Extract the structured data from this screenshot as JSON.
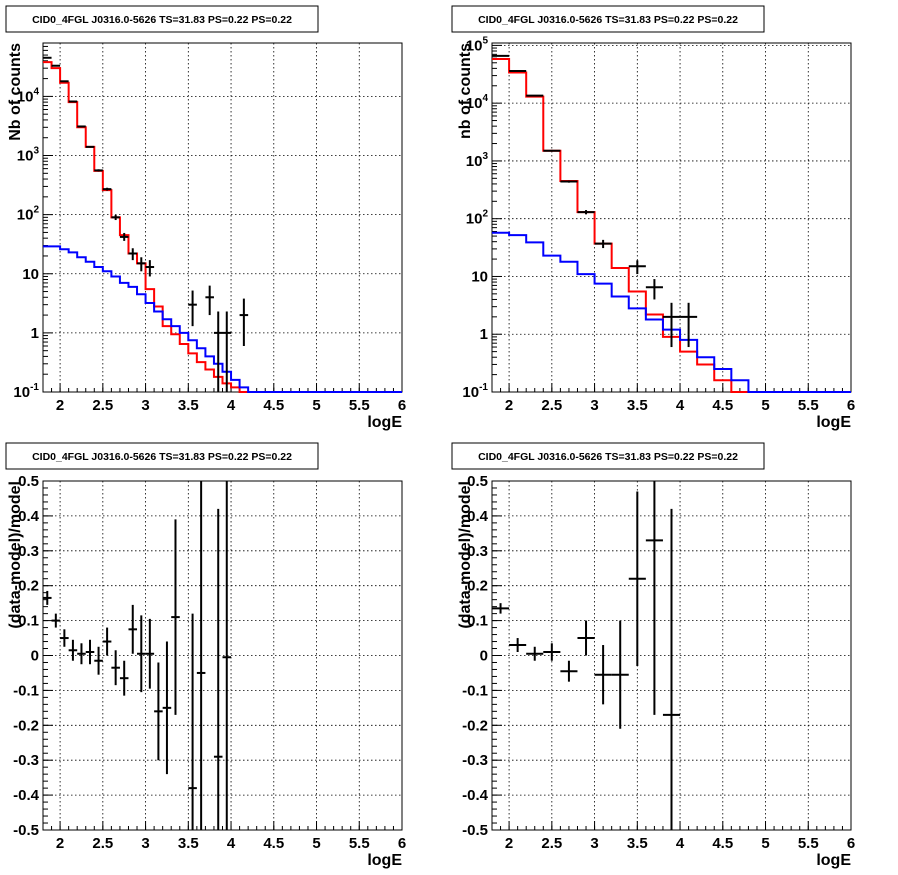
{
  "chart_data": [
    {
      "type": "histogram-log",
      "title": "CID0_4FGL J0316.0-5626 TS=31.83 PS=0.22 PS=0.22",
      "xlabel": "logE",
      "ylabel": "Nb of counts",
      "xlim": [
        1.8,
        6.0
      ],
      "ylim": [
        0.1,
        80000
      ],
      "log_y": true,
      "grid": true,
      "x_ticks": [
        "2",
        "2.5",
        "3",
        "3.5",
        "4",
        "4.5",
        "5",
        "5.5",
        "6"
      ],
      "y_ticks": [
        "10^-1",
        "1",
        "10",
        "10^2",
        "10^3",
        "10^4"
      ],
      "bin_width": 0.1,
      "bins_start": 1.8,
      "series": [
        {
          "color": "#ff0000",
          "values": [
            38000,
            30000,
            17000,
            8000,
            3000,
            1400,
            550,
            260,
            90,
            45,
            22,
            15,
            5.5,
            2.8,
            1.3,
            0.95,
            0.65,
            0.45,
            0.32,
            0.24,
            0.18,
            0.14,
            0.12,
            0.1,
            0.1,
            0.1,
            0.1,
            0.1,
            0.1,
            0.1,
            0.1,
            0.1,
            0.1,
            0.1,
            0.1,
            0.1,
            0.1,
            0.1,
            0.1,
            0.1,
            0.1,
            0.1
          ]
        },
        {
          "color": "#0000ff",
          "values": [
            29,
            29,
            26,
            23,
            19,
            16,
            13,
            11,
            9,
            7,
            6,
            4.5,
            3.2,
            2.3,
            1.7,
            1.3,
            1.0,
            0.75,
            0.55,
            0.4,
            0.3,
            0.22,
            0.16,
            0.12,
            0.1,
            0.1,
            0.1,
            0.1,
            0.1,
            0.1,
            0.1,
            0.1,
            0.1,
            0.1,
            0.1,
            0.1,
            0.1,
            0.1,
            0.1,
            0.1,
            0.1,
            0.1
          ]
        }
      ],
      "data_points": [
        {
          "x": 1.85,
          "y": 45000,
          "ylo": 44000,
          "yhi": 46000
        },
        {
          "x": 1.95,
          "y": 33000,
          "ylo": 32500,
          "yhi": 33500
        },
        {
          "x": 2.05,
          "y": 18000,
          "ylo": 17600,
          "yhi": 18400
        },
        {
          "x": 2.15,
          "y": 8200,
          "ylo": 8000,
          "yhi": 8400
        },
        {
          "x": 2.25,
          "y": 3100,
          "ylo": 3000,
          "yhi": 3200
        },
        {
          "x": 2.35,
          "y": 1400,
          "ylo": 1360,
          "yhi": 1440
        },
        {
          "x": 2.45,
          "y": 560,
          "ylo": 535,
          "yhi": 585
        },
        {
          "x": 2.55,
          "y": 270,
          "ylo": 255,
          "yhi": 285
        },
        {
          "x": 2.65,
          "y": 90,
          "ylo": 81,
          "yhi": 99
        },
        {
          "x": 2.75,
          "y": 42,
          "ylo": 36,
          "yhi": 49
        },
        {
          "x": 2.85,
          "y": 22,
          "ylo": 17,
          "yhi": 27
        },
        {
          "x": 2.95,
          "y": 15,
          "ylo": 11,
          "yhi": 19
        },
        {
          "x": 3.05,
          "y": 13,
          "ylo": 9,
          "yhi": 17
        },
        {
          "x": 3.55,
          "y": 3,
          "ylo": 1.3,
          "yhi": 5.2
        },
        {
          "x": 3.75,
          "y": 4,
          "ylo": 2,
          "yhi": 6.3
        },
        {
          "x": 3.85,
          "y": 1,
          "ylo": 0.1,
          "yhi": 2.3
        },
        {
          "x": 3.95,
          "y": 1,
          "ylo": 0.1,
          "yhi": 2.3
        },
        {
          "x": 4.15,
          "y": 2,
          "ylo": 0.6,
          "yhi": 3.8
        }
      ]
    },
    {
      "type": "histogram-log",
      "title": "CID0_4FGL J0316.0-5626 TS=31.83 PS=0.22 PS=0.22",
      "xlabel": "logE",
      "ylabel": "nb of counts",
      "xlim": [
        1.8,
        6.0
      ],
      "ylim": [
        0.1,
        110000
      ],
      "log_y": true,
      "grid": true,
      "x_ticks": [
        "2",
        "2.5",
        "3",
        "3.5",
        "4",
        "4.5",
        "5",
        "5.5",
        "6"
      ],
      "y_ticks": [
        "10^-1",
        "1",
        "10",
        "10^2",
        "10^3",
        "10^4",
        "10^5"
      ],
      "bin_width": 0.2,
      "bins_start": 1.8,
      "series": [
        {
          "color": "#ff0000",
          "values": [
            58000,
            34000,
            13000,
            1500,
            450,
            130,
            37,
            14,
            5.5,
            2.2,
            0.9,
            0.5,
            0.3,
            0.16,
            0.1,
            0.1,
            0.1,
            0.1,
            0.1,
            0.1,
            0.1
          ]
        },
        {
          "color": "#0000ff",
          "values": [
            57,
            52,
            39,
            23,
            18,
            11,
            7.5,
            4.5,
            2.8,
            1.8,
            1.2,
            0.8,
            0.4,
            0.25,
            0.16,
            0.1,
            0.1,
            0.1,
            0.1,
            0.1,
            0.1
          ]
        }
      ],
      "data_points": [
        {
          "x": 1.9,
          "y": 66000,
          "ylo": 65000,
          "yhi": 67000
        },
        {
          "x": 2.1,
          "y": 36000,
          "ylo": 35500,
          "yhi": 36500
        },
        {
          "x": 2.3,
          "y": 13500,
          "ylo": 13200,
          "yhi": 13800
        },
        {
          "x": 2.5,
          "y": 1500,
          "ylo": 1450,
          "yhi": 1550
        },
        {
          "x": 2.7,
          "y": 440,
          "ylo": 420,
          "yhi": 460
        },
        {
          "x": 2.9,
          "y": 130,
          "ylo": 119,
          "yhi": 141
        },
        {
          "x": 3.1,
          "y": 37,
          "ylo": 31,
          "yhi": 43
        },
        {
          "x": 3.5,
          "y": 15,
          "ylo": 11,
          "yhi": 19
        },
        {
          "x": 3.7,
          "y": 6.5,
          "ylo": 4,
          "yhi": 9
        },
        {
          "x": 3.9,
          "y": 2,
          "ylo": 0.6,
          "yhi": 3.5
        },
        {
          "x": 4.1,
          "y": 2,
          "ylo": 0.6,
          "yhi": 3.5
        }
      ]
    },
    {
      "type": "scatter-errorbar",
      "title": "CID0_4FGL J0316.0-5626 TS=31.83 PS=0.22 PS=0.22",
      "xlabel": "logE",
      "ylabel": "(data-model)/model",
      "xlim": [
        1.8,
        6.0
      ],
      "ylim": [
        -0.5,
        0.5
      ],
      "grid": true,
      "x_ticks": [
        "2",
        "2.5",
        "3",
        "3.5",
        "4",
        "4.5",
        "5",
        "5.5",
        "6"
      ],
      "y_ticks": [
        "-0.5",
        "-0.4",
        "-0.3",
        "-0.2",
        "-0.1",
        "0",
        "0.1",
        "0.2",
        "0.3",
        "0.4",
        "0.5"
      ],
      "x_half_width": 0.05,
      "points": [
        {
          "x": 1.85,
          "y": 0.165,
          "err": 0.02
        },
        {
          "x": 1.95,
          "y": 0.1,
          "err": 0.02
        },
        {
          "x": 2.05,
          "y": 0.05,
          "err": 0.025
        },
        {
          "x": 2.15,
          "y": 0.015,
          "err": 0.03
        },
        {
          "x": 2.25,
          "y": 0.005,
          "err": 0.03
        },
        {
          "x": 2.35,
          "y": 0.01,
          "err": 0.035
        },
        {
          "x": 2.45,
          "y": -0.015,
          "err": 0.04
        },
        {
          "x": 2.55,
          "y": 0.04,
          "err": 0.04
        },
        {
          "x": 2.65,
          "y": -0.035,
          "err": 0.05
        },
        {
          "x": 2.75,
          "y": -0.065,
          "err": 0.05
        },
        {
          "x": 2.85,
          "y": 0.075,
          "err": 0.07
        },
        {
          "x": 2.95,
          "y": 0.005,
          "err": 0.11
        },
        {
          "x": 3.05,
          "y": 0.005,
          "err": 0.1
        },
        {
          "x": 3.15,
          "y": -0.16,
          "err": 0.14
        },
        {
          "x": 3.25,
          "y": -0.15,
          "err": 0.19
        },
        {
          "x": 3.35,
          "y": 0.11,
          "err": 0.28
        },
        {
          "x": 3.55,
          "y": -0.38,
          "err": 0.5
        },
        {
          "x": 3.65,
          "y": -0.05,
          "err": 0.6
        },
        {
          "x": 3.85,
          "y": -0.29,
          "err": 0.71
        },
        {
          "x": 3.95,
          "y": -0.005,
          "err": 1.0
        }
      ]
    },
    {
      "type": "scatter-errorbar",
      "title": "CID0_4FGL J0316.0-5626 TS=31.83 PS=0.22 PS=0.22",
      "xlabel": "logE",
      "ylabel": "(data-model)/model",
      "xlim": [
        1.8,
        6.0
      ],
      "ylim": [
        -0.5,
        0.5
      ],
      "grid": true,
      "x_ticks": [
        "2",
        "2.5",
        "3",
        "3.5",
        "4",
        "4.5",
        "5",
        "5.5",
        "6"
      ],
      "y_ticks": [
        "-0.5",
        "-0.4",
        "-0.3",
        "-0.2",
        "-0.1",
        "0",
        "0.1",
        "0.2",
        "0.3",
        "0.4",
        "0.5"
      ],
      "x_half_width": 0.1,
      "points": [
        {
          "x": 1.9,
          "y": 0.135,
          "err": 0.015
        },
        {
          "x": 2.1,
          "y": 0.03,
          "err": 0.02
        },
        {
          "x": 2.3,
          "y": 0.005,
          "err": 0.02
        },
        {
          "x": 2.5,
          "y": 0.01,
          "err": 0.025
        },
        {
          "x": 2.7,
          "y": -0.045,
          "err": 0.03
        },
        {
          "x": 2.9,
          "y": 0.05,
          "err": 0.05
        },
        {
          "x": 3.1,
          "y": -0.055,
          "err": 0.085
        },
        {
          "x": 3.3,
          "y": -0.055,
          "err": 0.155
        },
        {
          "x": 3.5,
          "y": 0.22,
          "err": 0.25
        },
        {
          "x": 3.7,
          "y": 0.33,
          "err": 0.5
        },
        {
          "x": 3.9,
          "y": -0.17,
          "err": 0.59
        }
      ]
    }
  ]
}
